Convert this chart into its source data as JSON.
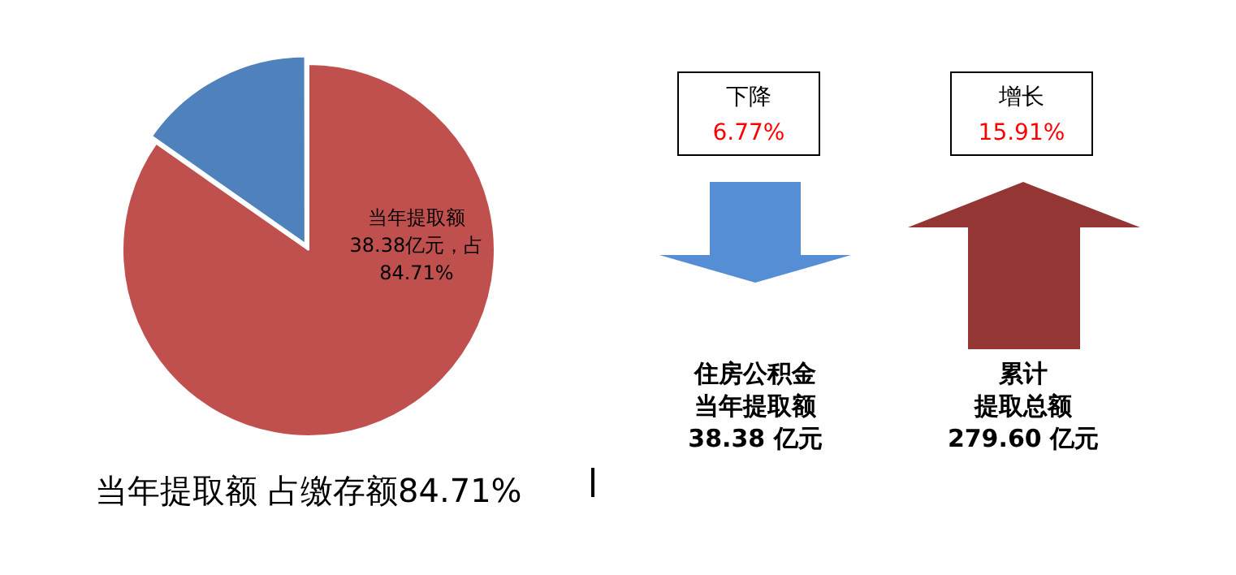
{
  "chart_data": {
    "type": "pie",
    "title": "当年提取额 占缴存额84.71%",
    "categories": [
      "当年提取额",
      null
    ],
    "values": [
      84.71,
      15.29
    ],
    "colors": [
      "#c0504d",
      "#4f81bd"
    ],
    "value_labels": [
      "38.38亿元，占\n84.71%",
      null
    ],
    "legend": false,
    "annotations": [
      "下降",
      "6.77%",
      "增长",
      "15.91%",
      "住房公积金",
      "当年提取额",
      "38.38 亿元",
      "累计",
      "提取总额",
      "279.60 亿元"
    ]
  }
}
